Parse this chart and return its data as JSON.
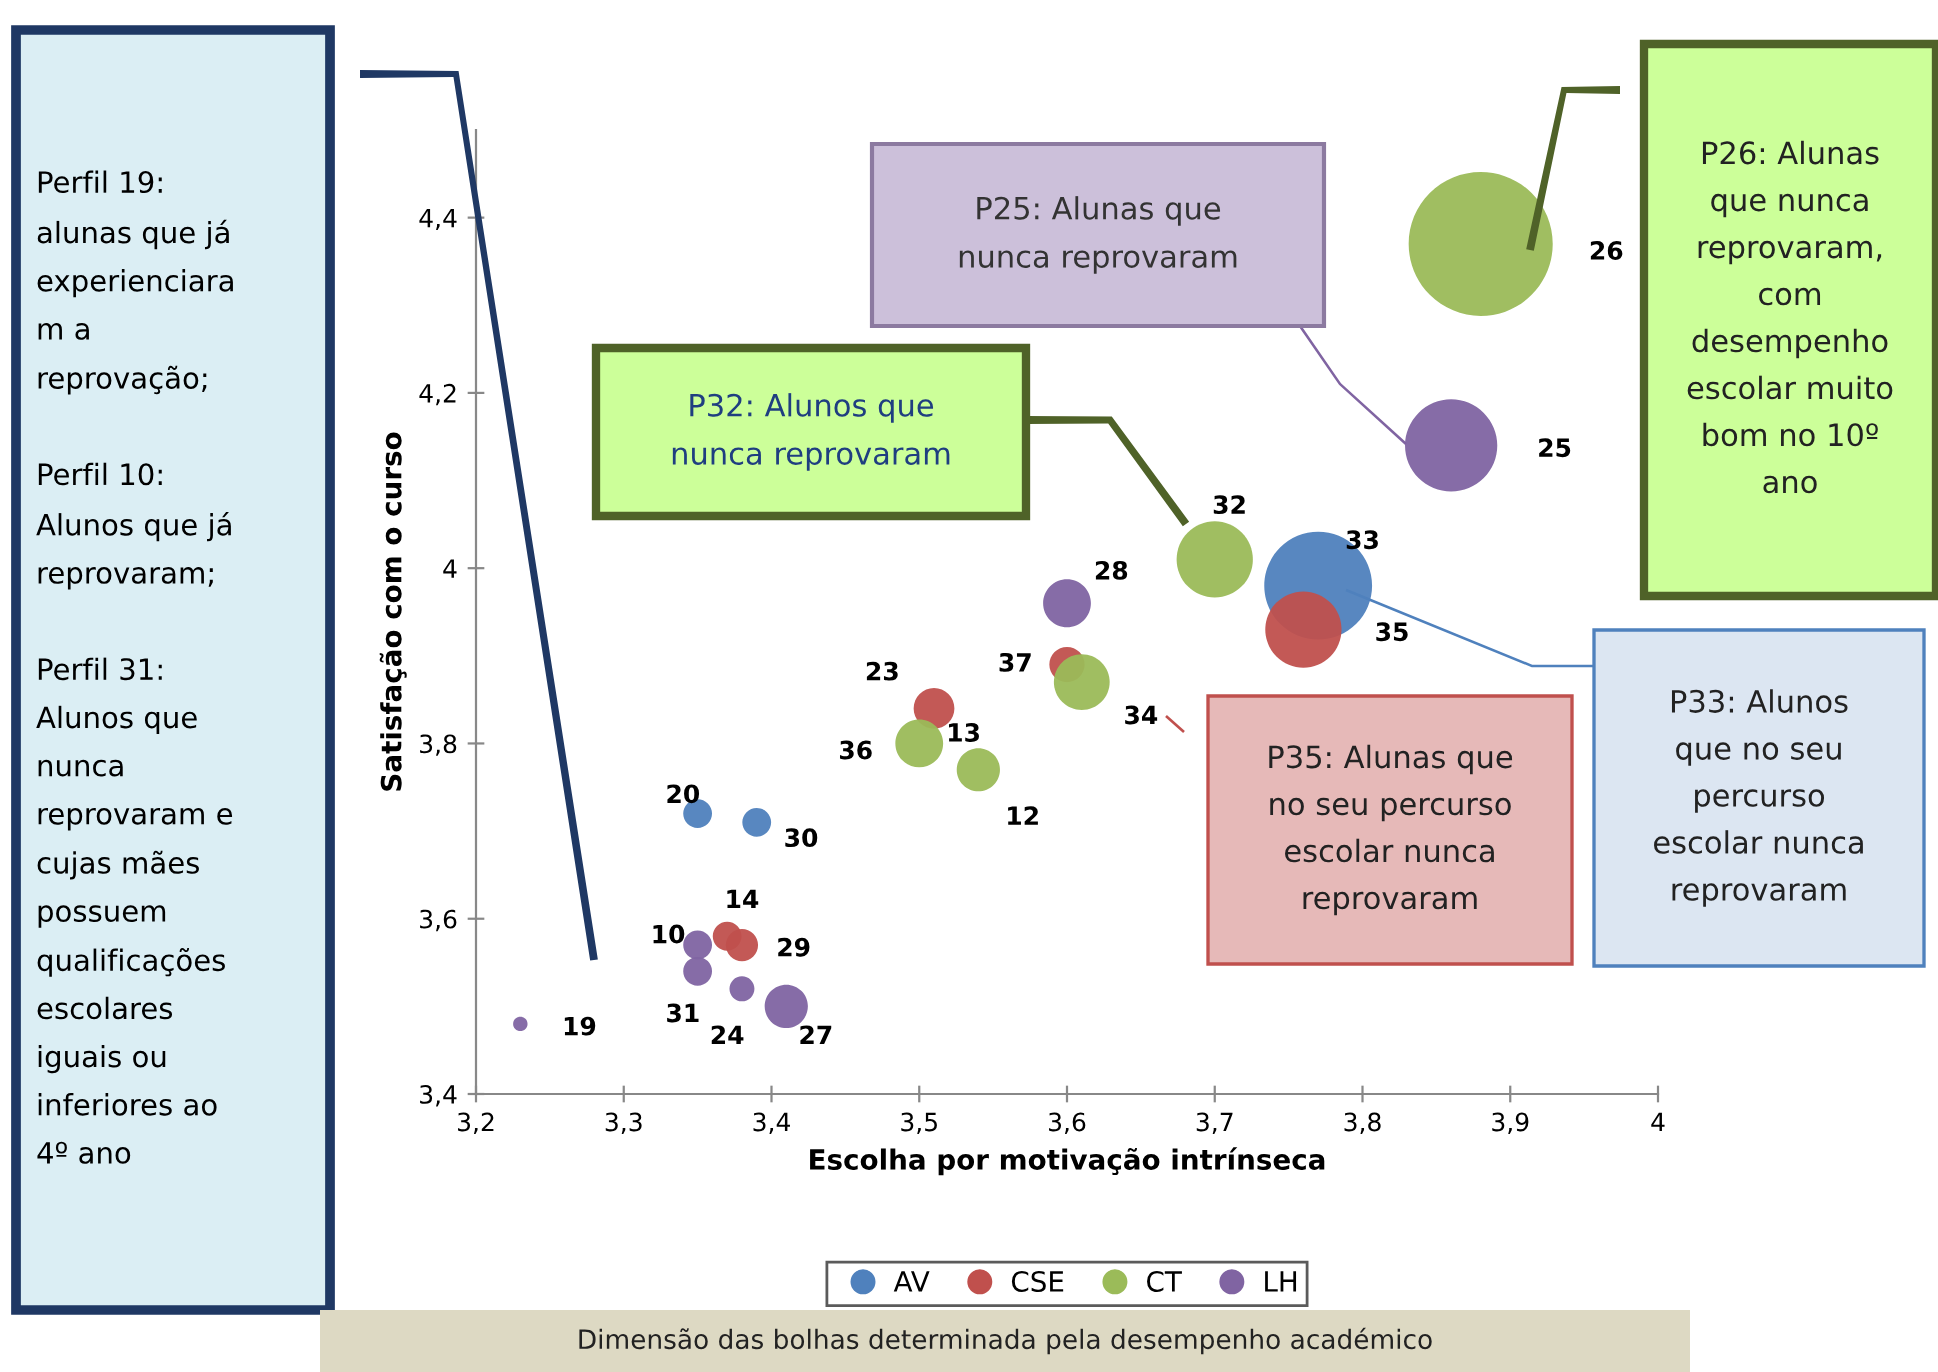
{
  "chart_data": {
    "type": "bubble",
    "xlabel": "Escolha por motivação intrínseca",
    "ylabel": "Satisfação com o curso",
    "xlim": [
      3.2,
      4
    ],
    "ylim": [
      3.4,
      4.5
    ],
    "xticks": [
      {
        "value": 3.2,
        "label": "3,2"
      },
      {
        "value": 3.3,
        "label": "3,3"
      },
      {
        "value": 3.4,
        "label": "3,4"
      },
      {
        "value": 3.5,
        "label": "3,5"
      },
      {
        "value": 3.6,
        "label": "3,6"
      },
      {
        "value": 3.7,
        "label": "3,7"
      },
      {
        "value": 3.8,
        "label": "3,8"
      },
      {
        "value": 3.9,
        "label": "3,9"
      },
      {
        "value": 4,
        "label": "4"
      }
    ],
    "yticks": [
      {
        "value": 3.4,
        "label": "3,4"
      },
      {
        "value": 3.6,
        "label": "3,6"
      },
      {
        "value": 3.8,
        "label": "3,8"
      },
      {
        "value": 4,
        "label": "4"
      },
      {
        "value": 4.2,
        "label": "4,2"
      },
      {
        "value": 4.4,
        "label": "4,4"
      }
    ],
    "grid": false,
    "legend": "bottom",
    "marker": "circle",
    "series": [
      {
        "name": "AV",
        "color": "#4f81bd",
        "x": [
          3.35,
          3.39,
          3.77
        ],
        "values": [
          3.72,
          3.71,
          3.98
        ],
        "sizes": [
          0.04,
          0.04,
          0.56
        ]
      },
      {
        "name": "CSE",
        "color": "#c0504d",
        "x": [
          3.37,
          3.38,
          3.51,
          3.6,
          3.76
        ],
        "values": [
          3.58,
          3.57,
          3.84,
          3.89,
          3.93
        ],
        "sizes": [
          0.04,
          0.05,
          0.08,
          0.06,
          0.28
        ]
      },
      {
        "name": "CT",
        "color": "#9bbb59",
        "x": [
          3.5,
          3.54,
          3.61,
          3.7,
          3.88
        ],
        "values": [
          3.8,
          3.77,
          3.87,
          4.01,
          4.37
        ],
        "sizes": [
          0.11,
          0.09,
          0.15,
          0.28,
          1
        ]
      },
      {
        "name": "LH",
        "color": "#8064a2",
        "x": [
          3.23,
          3.35,
          3.35,
          3.38,
          3.41,
          3.6,
          3.86
        ],
        "values": [
          3.48,
          3.57,
          3.54,
          3.52,
          3.5,
          3.96,
          4.14
        ],
        "sizes": [
          0.01,
          0.04,
          0.04,
          0.03,
          0.09,
          0.11,
          0.41
        ]
      }
    ],
    "annotations": [
      "Perfil 19:\nalunas que já\nexperienciara\nm a\nreprovação;\n\nPerfil 10:\nAlunos que já\nreprovaram;\n\nPerfil 31:\nAlunos que\nnunca\nreprovaram e\ncujas mães\npossuem\nqualificações\nescolares\niguais ou\ninferiores ao\n4º ano",
      "P25: Alunas que\nnunca reprovaram",
      "P32: Alunos que\nnunca reprovaram",
      "P26: Alunas\nque nunca\nreprovaram,\ncom\ndesempenho\nescolar muito\nbom no 10º\nano",
      "P33: Alunos\nque no seu\npercurso\nescolar nunca\nreprovaram",
      "P35: Alunas que\nno seu percurso\nescolar nunca\nreprovaram",
      "Dimensão das bolhas determinada pela desempenho académico",
      {
        "text": "20",
        "x": 3.35,
        "y": 3.72
      },
      {
        "text": "30",
        "x": 3.39,
        "y": 3.71
      },
      {
        "text": "33",
        "x": 3.77,
        "y": 3.98
      },
      {
        "text": "14",
        "x": 3.37,
        "y": 3.58
      },
      {
        "text": "29",
        "x": 3.38,
        "y": 3.57
      },
      {
        "text": "23",
        "x": 3.51,
        "y": 3.84
      },
      {
        "text": "37",
        "x": 3.6,
        "y": 3.89
      },
      {
        "text": "35",
        "x": 3.76,
        "y": 3.93
      },
      {
        "text": "36",
        "x": 3.5,
        "y": 3.8
      },
      "13",
      {
        "text": "12",
        "x": 3.54,
        "y": 3.77
      },
      {
        "text": "34",
        "x": 3.61,
        "y": 3.87
      },
      {
        "text": "32",
        "x": 3.7,
        "y": 4.01
      },
      "26",
      {
        "text": "19",
        "x": 3.23,
        "y": 3.48
      },
      {
        "text": "10",
        "x": 3.35,
        "y": 3.57
      },
      {
        "text": "31",
        "x": 3.35,
        "y": 3.54
      },
      {
        "text": "24",
        "x": 3.38,
        "y": 3.52
      },
      {
        "text": "27",
        "x": 3.41,
        "y": 3.5
      },
      {
        "text": "28",
        "x": 3.6,
        "y": 3.96
      },
      "25"
    ]
  }
}
